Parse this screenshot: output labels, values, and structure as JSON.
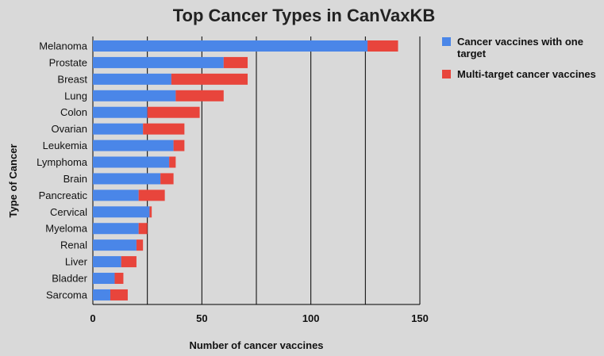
{
  "chart_data": {
    "type": "bar",
    "orientation": "horizontal",
    "stacked": true,
    "title": "Top Cancer Types in CanVaxKB",
    "xlabel": "Number of cancer vaccines",
    "ylabel": "Type of Cancer",
    "xlim": [
      0,
      150
    ],
    "xticks": [
      0,
      50,
      100,
      150
    ],
    "grid": true,
    "legend_position": "top-right",
    "categories": [
      "Melanoma",
      "Prostate",
      "Breast",
      "Lung",
      "Colon",
      "Ovarian",
      "Leukemia",
      "Lymphoma",
      "Brain",
      "Pancreatic",
      "Cervical",
      "Myeloma",
      "Renal",
      "Liver",
      "Bladder",
      "Sarcoma"
    ],
    "series": [
      {
        "name": "Cancer vaccines with one target",
        "legend_lines": [
          "Cancer vaccines with one",
          "target"
        ],
        "color": "#4a86e8",
        "values": [
          126,
          60,
          36,
          38,
          25,
          23,
          37,
          35,
          31,
          21,
          26,
          21,
          20,
          13,
          10,
          8
        ]
      },
      {
        "name": "Multi-target cancer vaccines",
        "legend_lines": [
          "Multi-target cancer vaccines"
        ],
        "color": "#e8453c",
        "values": [
          14,
          11,
          35,
          22,
          24,
          19,
          5,
          3,
          6,
          12,
          1,
          4,
          3,
          7,
          4,
          8
        ]
      }
    ]
  }
}
